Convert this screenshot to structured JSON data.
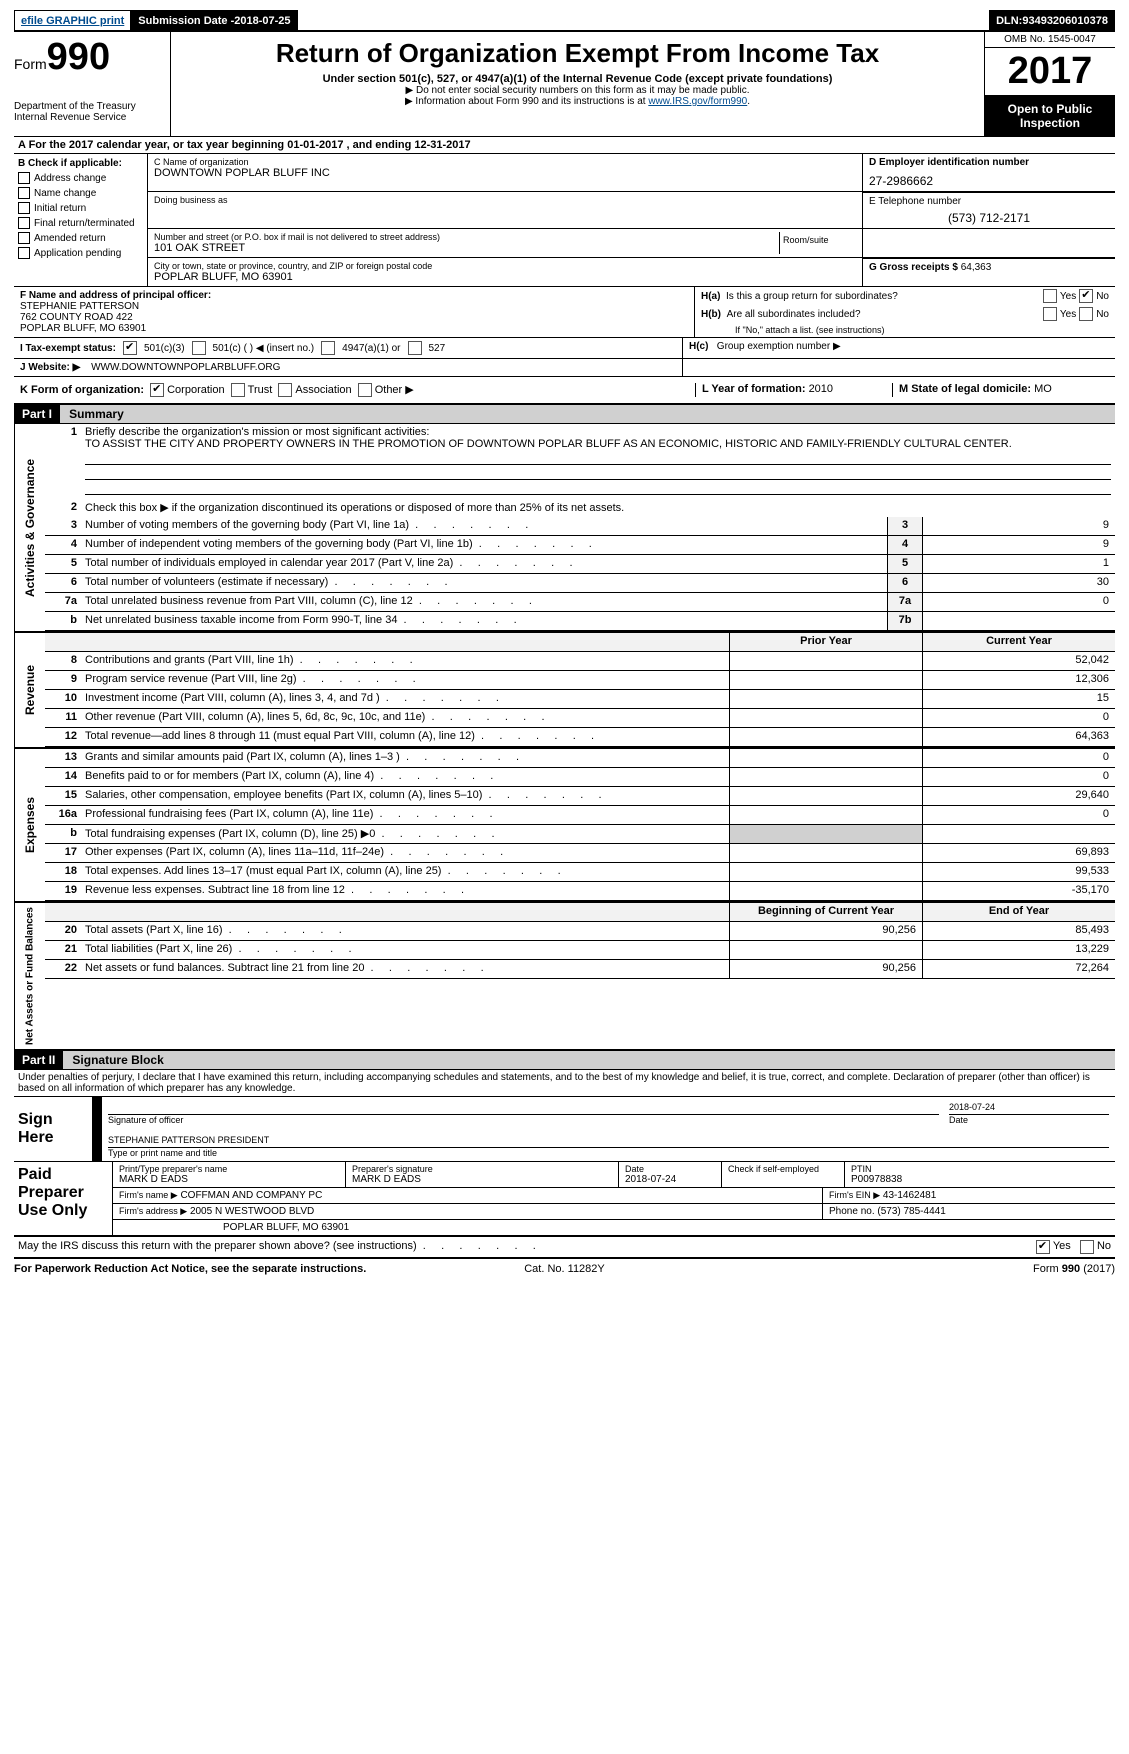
{
  "topbar": {
    "efile": "efile GRAPHIC print",
    "submission_label": "Submission Date - ",
    "submission_date": "2018-07-25",
    "dln_label": "DLN: ",
    "dln": "93493206010378"
  },
  "header": {
    "form_small": "Form",
    "form_big": "990",
    "dept1": "Department of the Treasury",
    "dept2": "Internal Revenue Service",
    "title": "Return of Organization Exempt From Income Tax",
    "sub1": "Under section 501(c), 527, or 4947(a)(1) of the Internal Revenue Code (except private foundations)",
    "sub2": "▶ Do not enter social security numbers on this form as it may be made public.",
    "sub3_pre": "▶ Information about Form 990 and its instructions is at ",
    "sub3_link": "www.IRS.gov/form990",
    "omb": "OMB No. 1545-0047",
    "year": "2017",
    "open1": "Open to Public",
    "open2": "Inspection"
  },
  "rowA": {
    "text_pre": "A   For the 2017 calendar year, or tax year beginning ",
    "begin": "01-01-2017",
    "mid": " , and ending ",
    "end": "12-31-2017"
  },
  "colB": {
    "head": "B Check if applicable:",
    "items": [
      "Address change",
      "Name change",
      "Initial return",
      "Final return/terminated",
      "Amended return",
      "Application pending"
    ]
  },
  "C": {
    "name_lbl": "C Name of organization",
    "name": "DOWNTOWN POPLAR BLUFF INC",
    "dba_lbl": "Doing business as",
    "dba": "",
    "street_lbl": "Number and street (or P.O. box if mail is not delivered to street address)",
    "street": "101 OAK STREET",
    "room_lbl": "Room/suite",
    "city_lbl": "City or town, state or province, country, and ZIP or foreign postal code",
    "city": "POPLAR BLUFF, MO  63901"
  },
  "D": {
    "lbl": "D Employer identification number",
    "val": "27-2986662"
  },
  "E": {
    "lbl": "E Telephone number",
    "val": "(573) 712-2171"
  },
  "G": {
    "lbl": "G Gross receipts $ ",
    "val": "64,363"
  },
  "F": {
    "lbl": "F Name and address of principal officer:",
    "l1": "STEPHANIE PATTERSON",
    "l2": "762 COUNTY ROAD 422",
    "l3": "POPLAR BLUFF, MO  63901"
  },
  "H": {
    "a_lbl": "H(a)",
    "a_txt": "Is this a group return for subordinates?",
    "b_lbl": "H(b)",
    "b_txt": "Are all subordinates included?",
    "b_note": "If \"No,\" attach a list. (see instructions)",
    "c_lbl": "H(c)",
    "c_txt": "Group exemption number ▶",
    "yes": "Yes",
    "no": "No"
  },
  "I": {
    "lbl": "I     Tax-exempt status:",
    "o1": "501(c)(3)",
    "o2": "501(c) (   ) ◀ (insert no.)",
    "o3": "4947(a)(1) or",
    "o4": "527"
  },
  "J": {
    "lbl": "J    Website: ▶",
    "val": "WWW.DOWNTOWNPOPLARBLUFF.ORG"
  },
  "K": {
    "lbl": "K Form of organization:",
    "o1": "Corporation",
    "o2": "Trust",
    "o3": "Association",
    "o4": "Other ▶"
  },
  "L": {
    "lbl": "L Year of formation: ",
    "val": "2010"
  },
  "M": {
    "lbl": "M State of legal domicile: ",
    "val": "MO"
  },
  "part1": {
    "hdr": "Part I",
    "title": "Summary"
  },
  "gov": {
    "tab": "Activities & Governance",
    "l1": "Briefly describe the organization's mission or most significant activities:",
    "l1v": "TO ASSIST THE CITY AND PROPERTY OWNERS IN THE PROMOTION OF DOWNTOWN POPLAR BLUFF AS AN ECONOMIC, HISTORIC AND FAMILY-FRIENDLY CULTURAL CENTER.",
    "l2": "Check this box ▶      if the organization discontinued its operations or disposed of more than 25% of its net assets.",
    "rows": [
      {
        "n": "3",
        "t": "Number of voting members of the governing body (Part VI, line 1a)",
        "b": "3",
        "v": "9"
      },
      {
        "n": "4",
        "t": "Number of independent voting members of the governing body (Part VI, line 1b)",
        "b": "4",
        "v": "9"
      },
      {
        "n": "5",
        "t": "Total number of individuals employed in calendar year 2017 (Part V, line 2a)",
        "b": "5",
        "v": "1"
      },
      {
        "n": "6",
        "t": "Total number of volunteers (estimate if necessary)",
        "b": "6",
        "v": "30"
      },
      {
        "n": "7a",
        "t": "Total unrelated business revenue from Part VIII, column (C), line 12",
        "b": "7a",
        "v": "0"
      },
      {
        "n": "b",
        "t": "Net unrelated business taxable income from Form 990-T, line 34",
        "b": "7b",
        "v": ""
      }
    ]
  },
  "colhdr": {
    "prior": "Prior Year",
    "current": "Current Year"
  },
  "rev": {
    "tab": "Revenue",
    "rows": [
      {
        "n": "8",
        "t": "Contributions and grants (Part VIII, line 1h)",
        "p": "",
        "c": "52,042"
      },
      {
        "n": "9",
        "t": "Program service revenue (Part VIII, line 2g)",
        "p": "",
        "c": "12,306"
      },
      {
        "n": "10",
        "t": "Investment income (Part VIII, column (A), lines 3, 4, and 7d )",
        "p": "",
        "c": "15"
      },
      {
        "n": "11",
        "t": "Other revenue (Part VIII, column (A), lines 5, 6d, 8c, 9c, 10c, and 11e)",
        "p": "",
        "c": "0"
      },
      {
        "n": "12",
        "t": "Total revenue—add lines 8 through 11 (must equal Part VIII, column (A), line 12)",
        "p": "",
        "c": "64,363"
      }
    ]
  },
  "exp": {
    "tab": "Expenses",
    "rows": [
      {
        "n": "13",
        "t": "Grants and similar amounts paid (Part IX, column (A), lines 1–3 )",
        "p": "",
        "c": "0"
      },
      {
        "n": "14",
        "t": "Benefits paid to or for members (Part IX, column (A), line 4)",
        "p": "",
        "c": "0"
      },
      {
        "n": "15",
        "t": "Salaries, other compensation, employee benefits (Part IX, column (A), lines 5–10)",
        "p": "",
        "c": "29,640"
      },
      {
        "n": "16a",
        "t": "Professional fundraising fees (Part IX, column (A), line 11e)",
        "p": "",
        "c": "0"
      },
      {
        "n": "b",
        "t": "Total fundraising expenses (Part IX, column (D), line 25) ▶0",
        "p": "shade",
        "c": "shade"
      },
      {
        "n": "17",
        "t": "Other expenses (Part IX, column (A), lines 11a–11d, 11f–24e)",
        "p": "",
        "c": "69,893"
      },
      {
        "n": "18",
        "t": "Total expenses. Add lines 13–17 (must equal Part IX, column (A), line 25)",
        "p": "",
        "c": "99,533"
      },
      {
        "n": "19",
        "t": "Revenue less expenses. Subtract line 18 from line 12",
        "p": "",
        "c": "-35,170"
      }
    ]
  },
  "na": {
    "tab": "Net Assets or\nFund Balances",
    "hdr_prior": "Beginning of Current Year",
    "hdr_cur": "End of Year",
    "rows": [
      {
        "n": "20",
        "t": "Total assets (Part X, line 16)",
        "p": "90,256",
        "c": "85,493"
      },
      {
        "n": "21",
        "t": "Total liabilities (Part X, line 26)",
        "p": "",
        "c": "13,229"
      },
      {
        "n": "22",
        "t": "Net assets or fund balances. Subtract line 21 from line 20",
        "p": "90,256",
        "c": "72,264"
      }
    ]
  },
  "part2": {
    "hdr": "Part II",
    "title": "Signature Block"
  },
  "penalty": "Under penalties of perjury, I declare that I have examined this return, including accompanying schedules and statements, and to the best of my knowledge and belief, it is true, correct, and complete. Declaration of preparer (other than officer) is based on all information of which preparer has any knowledge.",
  "sign": {
    "here": "Sign Here",
    "sig_lbl": "Signature of officer",
    "date": "2018-07-24",
    "date_lbl": "Date",
    "name": "STEPHANIE PATTERSON  PRESIDENT",
    "name_lbl": "Type or print name and title"
  },
  "paid": {
    "lbl1": "Paid",
    "lbl2": "Preparer",
    "lbl3": "Use Only",
    "r1": {
      "a": "Print/Type preparer's name",
      "av": "MARK D EADS",
      "b": "Preparer's signature",
      "bv": "MARK D EADS",
      "c": "Date",
      "cv": "2018-07-24",
      "d": "Check      if self-employed",
      "e": "PTIN",
      "ev": "P00978838"
    },
    "r2": {
      "a": "Firm's name    ▶",
      "av": "COFFMAN AND COMPANY PC",
      "b": "Firm's EIN ▶",
      "bv": "43-1462481"
    },
    "r3": {
      "a": "Firm's address ▶",
      "av": "2005 N WESTWOOD BLVD",
      "b": "Phone no. (573) 785-4441"
    },
    "r4": {
      "av": "POPLAR BLUFF, MO  63901"
    }
  },
  "may": {
    "txt": "May the IRS discuss this return with the preparer shown above? (see instructions)",
    "yes": "Yes",
    "no": "No"
  },
  "footer": {
    "l": "For Paperwork Reduction Act Notice, see the separate instructions.",
    "m": "Cat. No. 11282Y",
    "r": "Form 990 (2017)"
  }
}
